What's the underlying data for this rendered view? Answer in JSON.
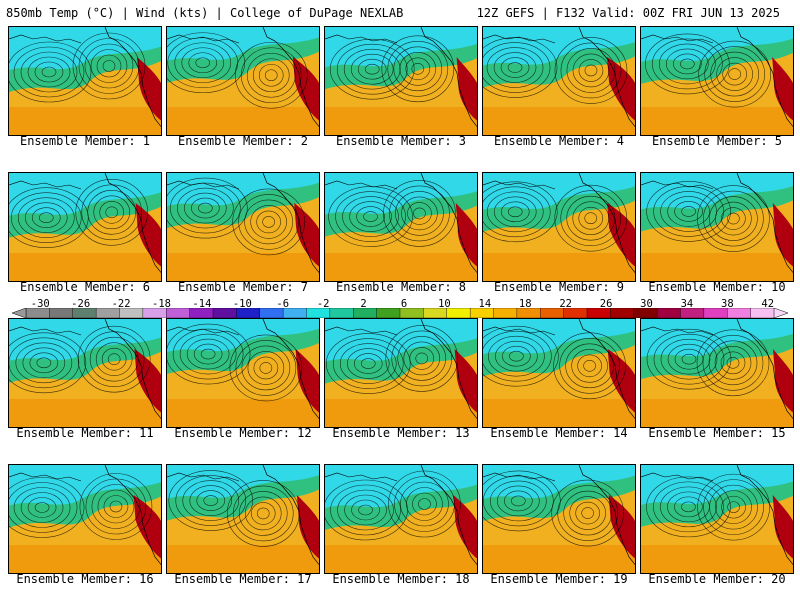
{
  "header": {
    "left": "850mb Temp (°C) | Wind (kts) | College of DuPage NEXLAB",
    "right": "12Z GEFS | F132 Valid: 00Z FRI JUN 13 2025"
  },
  "panels": [
    {
      "label": "Ensemble Member: 1"
    },
    {
      "label": "Ensemble Member: 2"
    },
    {
      "label": "Ensemble Member: 3"
    },
    {
      "label": "Ensemble Member: 4"
    },
    {
      "label": "Ensemble Member: 5"
    },
    {
      "label": "Ensemble Member: 6"
    },
    {
      "label": "Ensemble Member: 7"
    },
    {
      "label": "Ensemble Member: 8"
    },
    {
      "label": "Ensemble Member: 9"
    },
    {
      "label": "Ensemble Member: 10"
    },
    {
      "label": "Ensemble Member: 11"
    },
    {
      "label": "Ensemble Member: 12"
    },
    {
      "label": "Ensemble Member: 13"
    },
    {
      "label": "Ensemble Member: 14"
    },
    {
      "label": "Ensemble Member: 15"
    },
    {
      "label": "Ensemble Member: 16"
    },
    {
      "label": "Ensemble Member: 17"
    },
    {
      "label": "Ensemble Member: 18"
    },
    {
      "label": "Ensemble Member: 19"
    },
    {
      "label": "Ensemble Member: 20"
    }
  ],
  "colorbar": {
    "ticks": [
      "-30",
      "-26",
      "-22",
      "-18",
      "-14",
      "-10",
      "-6",
      "-2",
      "2",
      "6",
      "10",
      "14",
      "18",
      "22",
      "26",
      "30",
      "34",
      "38",
      "42"
    ],
    "colors": [
      "#8c8c8c",
      "#787878",
      "#5f7f6f",
      "#a0a0a0",
      "#c0c0c0",
      "#d8a0e8",
      "#c060d8",
      "#9020c0",
      "#6010a0",
      "#2020c8",
      "#3070f0",
      "#40b0f0",
      "#20e0e0",
      "#20c8a0",
      "#20b060",
      "#40a020",
      "#90c020",
      "#d8d820",
      "#f0f000",
      "#f8d000",
      "#f8b000",
      "#f09000",
      "#e86000",
      "#e03000",
      "#c80000",
      "#a00000",
      "#800000",
      "#a00040",
      "#c02080",
      "#e040c0",
      "#f080e0",
      "#f8c0f0"
    ],
    "palette": {
      "cold": "#30d8e8",
      "mid": "#30c080",
      "warm": "#f0b020",
      "hot": "#f08800",
      "extreme": "#b00010"
    }
  }
}
